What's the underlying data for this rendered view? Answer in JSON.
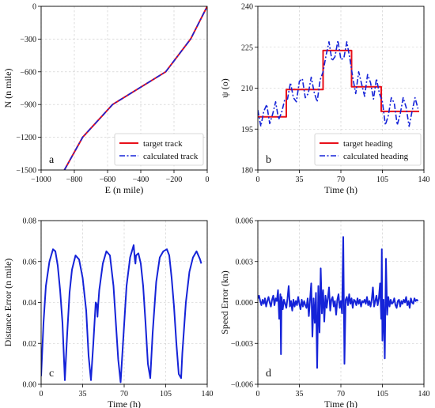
{
  "colors": {
    "red": "#e8101a",
    "blue": "#1523d8"
  },
  "chart_data": [
    {
      "panel": "a",
      "type": "line",
      "xlabel": "E (n mile)",
      "ylabel": "N (n mile)",
      "xlim": [
        -1000,
        0
      ],
      "ylim": [
        -1500,
        0
      ],
      "xticks": [
        -1000,
        -800,
        -600,
        -400,
        -200,
        0
      ],
      "yticks": [
        -1500,
        -1200,
        -900,
        -600,
        -300,
        0
      ],
      "xtick_labels": [
        "−1000",
        "−800",
        "−600",
        "−400",
        "−200",
        "0"
      ],
      "ytick_labels": [
        "−1500",
        "−1200",
        "−900",
        "−600",
        "−300",
        "0"
      ],
      "grid": true,
      "legend_position": "lower-right",
      "series": [
        {
          "name": "target track",
          "color": "#e8101a",
          "style": "solid",
          "x": [
            -860,
            -750,
            -570,
            -250,
            -100,
            0
          ],
          "y": [
            -1500,
            -1200,
            -900,
            -600,
            -300,
            0
          ]
        },
        {
          "name": "calculated track",
          "color": "#1523d8",
          "style": "dashdot",
          "x": [
            -860,
            -750,
            -570,
            -250,
            -100,
            0
          ],
          "y": [
            -1500,
            -1200,
            -900,
            -600,
            -300,
            0
          ]
        }
      ]
    },
    {
      "panel": "b",
      "type": "line",
      "xlabel": "Time (h)",
      "ylabel": "ψ (o)",
      "xlim": [
        0,
        140
      ],
      "ylim": [
        180,
        240
      ],
      "xticks": [
        0,
        35,
        70,
        105,
        140
      ],
      "yticks": [
        180,
        195,
        210,
        225,
        240
      ],
      "xtick_labels": [
        "0",
        "35",
        "70",
        "105",
        "140"
      ],
      "ytick_labels": [
        "180",
        "195",
        "210",
        "225",
        "240"
      ],
      "grid": true,
      "legend_position": "lower-right",
      "series": [
        {
          "name": "target heading",
          "color": "#e8101a",
          "style": "solid",
          "x": [
            0,
            24,
            24,
            55,
            55,
            79,
            79,
            104,
            104,
            136
          ],
          "y": [
            199.5,
            199.5,
            209.5,
            209.5,
            223.8,
            223.8,
            210.5,
            210.5,
            201.5,
            201.5
          ]
        },
        {
          "name": "calculated heading",
          "color": "#1523d8",
          "style": "dashdot",
          "x": [
            0,
            2.5,
            5,
            7.5,
            10,
            12.5,
            15,
            17.5,
            20,
            22.5,
            25,
            27.5,
            30,
            32.5,
            35,
            37.5,
            40,
            42.5,
            45,
            47.5,
            50,
            52.5,
            55,
            57.5,
            60,
            62.5,
            65,
            67.5,
            70,
            72.5,
            75,
            77.5,
            80,
            82.5,
            85,
            87.5,
            90,
            92.5,
            95,
            97.5,
            100,
            102.5,
            105,
            107.5,
            110,
            112.5,
            115,
            117.5,
            120,
            122.5,
            125,
            127.5,
            130,
            132.5,
            135
          ],
          "y": [
            202,
            196,
            201.5,
            204,
            197,
            200.5,
            205,
            198.5,
            201,
            205.5,
            206,
            212,
            206.5,
            205,
            212.5,
            213.5,
            206.5,
            208,
            214,
            208.5,
            205,
            213,
            216,
            222,
            227,
            220,
            221.5,
            227.5,
            220.5,
            221,
            227,
            221,
            214,
            208,
            216,
            211.5,
            207,
            215,
            212,
            206,
            213.5,
            208,
            205,
            196.5,
            200,
            206.5,
            204.5,
            196.5,
            200.5,
            206.5,
            203,
            196,
            201.5,
            206.5,
            202.5
          ]
        }
      ]
    },
    {
      "panel": "c",
      "type": "line",
      "xlabel": "Time (h)",
      "ylabel": "Distance Error (n mile)",
      "xlim": [
        0,
        140
      ],
      "ylim": [
        0,
        0.08
      ],
      "xticks": [
        0,
        35,
        70,
        105,
        140
      ],
      "yticks": [
        0,
        0.02,
        0.04,
        0.06,
        0.08
      ],
      "xtick_labels": [
        "0",
        "35",
        "70",
        "105",
        "140"
      ],
      "ytick_labels": [
        "0.00",
        "0.02",
        "0.04",
        "0.06",
        "0.08"
      ],
      "grid": true,
      "series": [
        {
          "name": "",
          "color": "#1523d8",
          "style": "solid",
          "x": [
            0,
            2,
            4,
            7,
            10,
            12,
            14,
            16,
            18,
            20,
            22,
            24,
            26,
            29,
            32,
            35,
            38,
            40,
            42,
            44,
            46,
            47,
            47.5,
            48,
            49,
            52,
            55,
            58,
            61,
            63,
            65,
            67,
            69,
            72,
            75,
            78,
            79,
            79.5,
            80,
            82,
            84,
            86,
            88,
            90,
            92,
            94,
            97,
            100,
            103,
            106,
            108,
            110,
            112,
            114,
            116,
            118,
            119,
            122,
            125,
            128,
            131,
            134,
            135
          ],
          "y": [
            0.004,
            0.03,
            0.048,
            0.06,
            0.066,
            0.065,
            0.058,
            0.046,
            0.03,
            0.002,
            0.025,
            0.045,
            0.056,
            0.063,
            0.061,
            0.052,
            0.036,
            0.014,
            0.002,
            0.02,
            0.04,
            0.039,
            0.033,
            0.038,
            0.046,
            0.059,
            0.065,
            0.063,
            0.048,
            0.03,
            0.012,
            0.001,
            0.02,
            0.048,
            0.062,
            0.068,
            0.061,
            0.059,
            0.063,
            0.064,
            0.059,
            0.048,
            0.03,
            0.01,
            0.003,
            0.025,
            0.05,
            0.062,
            0.065,
            0.066,
            0.063,
            0.052,
            0.038,
            0.02,
            0.005,
            0.003,
            0.015,
            0.04,
            0.055,
            0.062,
            0.065,
            0.061,
            0.059
          ]
        }
      ]
    },
    {
      "panel": "d",
      "type": "line",
      "xlabel": "Time (h)",
      "ylabel": "Speed Error (kn)",
      "xlim": [
        0,
        140
      ],
      "ylim": [
        -0.006,
        0.006
      ],
      "xticks": [
        0,
        35,
        70,
        105,
        140
      ],
      "yticks": [
        -0.006,
        -0.003,
        0,
        0.003,
        0.006
      ],
      "xtick_labels": [
        "0",
        "35",
        "70",
        "105",
        "140"
      ],
      "ytick_labels": [
        "−0.006",
        "−0.003",
        "0.000",
        "0.003",
        "0.006"
      ],
      "grid": true,
      "series": [
        {
          "name": "",
          "color": "#1523d8",
          "style": "solid",
          "x": [
            0,
            1,
            2,
            3,
            4,
            5,
            6,
            7,
            8,
            9,
            10,
            11,
            12,
            13,
            14,
            15,
            16,
            17,
            18,
            19,
            19.5,
            20,
            21,
            22,
            23,
            24,
            25,
            26,
            27,
            28,
            29,
            30,
            31,
            32,
            33,
            34,
            35,
            36,
            37,
            38,
            39,
            40,
            41,
            42,
            43,
            44,
            45,
            46,
            47,
            48,
            49,
            50,
            51,
            52,
            53,
            54,
            55,
            56,
            57,
            58,
            59,
            60,
            61,
            62,
            63,
            64,
            65,
            66,
            67,
            68,
            69,
            70,
            71,
            72,
            73,
            74,
            75,
            76,
            77,
            78,
            79,
            80,
            81,
            82,
            83,
            84,
            85,
            86,
            87,
            88,
            89,
            90,
            91,
            92,
            93,
            94,
            95,
            96,
            97,
            98,
            99,
            100,
            101,
            102,
            103,
            104,
            104.5,
            105,
            106,
            107,
            108,
            109,
            110,
            111,
            112,
            113,
            114,
            115,
            116,
            117,
            118,
            119,
            120,
            121,
            122,
            123,
            124,
            125,
            126,
            127,
            128,
            129,
            130,
            131,
            132,
            133,
            134,
            135
          ],
          "y": [
            0.0003,
            0.0005,
            0.0001,
            -0.0002,
            0.0002,
            -0.0001,
            0.0003,
            -0.0003,
            0.0001,
            0.0004,
            0.0,
            -0.0003,
            0.0002,
            0.0005,
            -0.0002,
            0.0003,
            0.0001,
            0.0009,
            -0.0012,
            0.0006,
            -0.0038,
            0.0004,
            -0.0005,
            0.0002,
            -0.0001,
            -0.0004,
            0.0003,
            0.0012,
            -0.0003,
            0.0001,
            -0.0006,
            0.0002,
            -0.0003,
            0.0001,
            -0.0002,
            0.0004,
            -0.0001,
            -0.0005,
            0.0002,
            -0.0003,
            0.0001,
            -0.0002,
            -0.0004,
            0.0003,
            -0.001,
            0.0002,
            0.0014,
            -0.0025,
            0.0003,
            -0.0015,
            0.0007,
            -0.0048,
            0.0012,
            -0.0022,
            0.0025,
            -0.0008,
            0.0009,
            -0.0014,
            0.0005,
            -0.0004,
            0.0003,
            0.0011,
            -0.0006,
            0.0002,
            0.0004,
            -0.0003,
            0.0001,
            -0.0009,
            0.0002,
            0.0006,
            -0.0004,
            0.0001,
            -0.0008,
            0.0048,
            -0.0045,
            0.0002,
            0.0004,
            -0.0002,
            0.0006,
            -0.0001,
            0.0003,
            -0.0004,
            0.0002,
            0.0001,
            -0.0002,
            0.0003,
            -0.0001,
            0.0002,
            -0.0003,
            0.0001,
            0.0,
            0.0002,
            -0.0001,
            0.0004,
            -0.0002,
            0.0001,
            -0.0003,
            0.0002,
            0.0011,
            -0.0003,
            0.0001,
            0.0005,
            -0.0002,
            0.0003,
            0.0014,
            -0.0012,
            0.0039,
            -0.0028,
            0.0002,
            -0.0041,
            0.0032,
            -0.0009,
            0.0004,
            -0.0003,
            0.0002,
            -0.0001,
            0.0,
            0.0003,
            -0.0002,
            -0.0004,
            0.0001,
            0.0002,
            -0.0003,
            0.0001,
            -0.0001,
            0.0002,
            0.0,
            0.0004,
            -0.0002,
            0.0001,
            -0.0004,
            0.0003,
            0.0,
            -0.0001,
            0.0003,
            0.0001,
            0.0002,
            0.0001
          ]
        }
      ]
    }
  ]
}
